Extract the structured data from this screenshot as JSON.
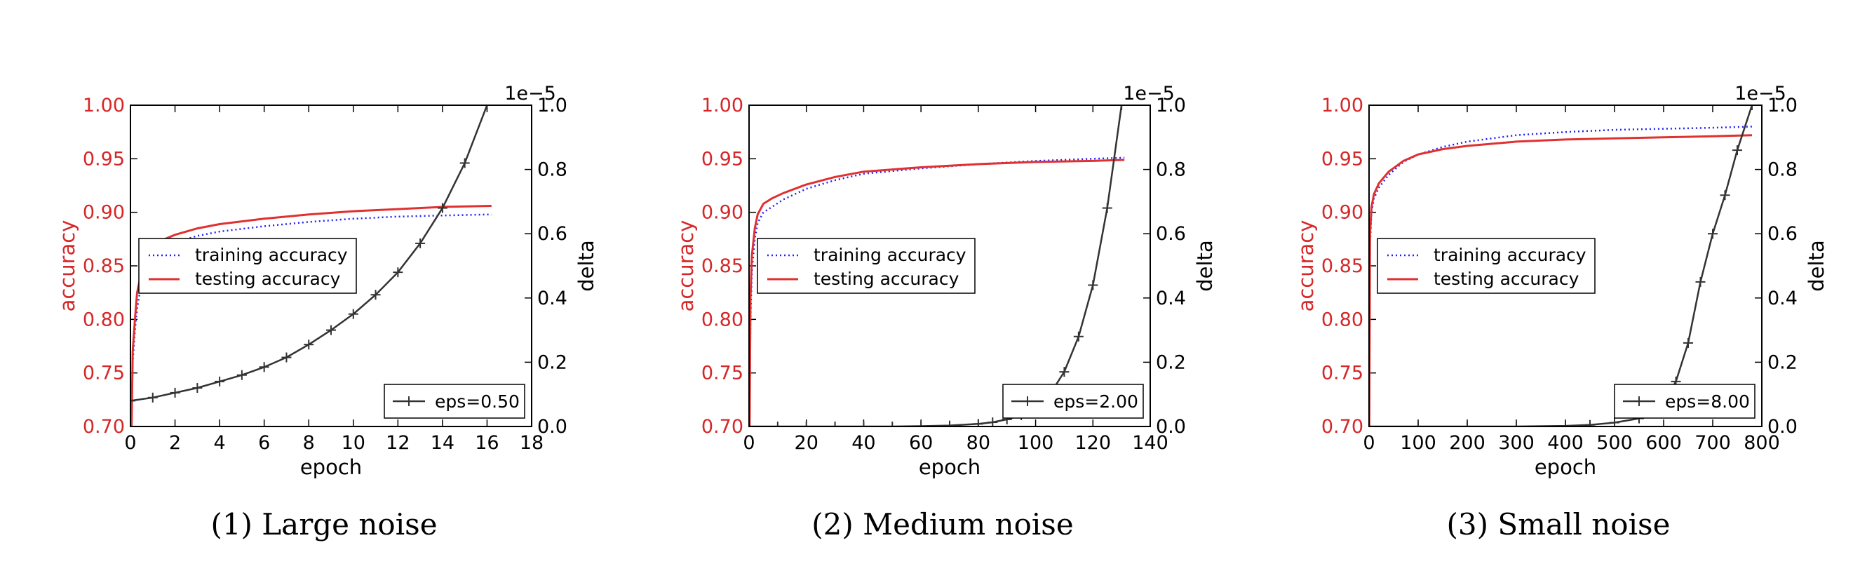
{
  "colors": {
    "accuracy_axis": "#d62728",
    "delta_axis": "#000000",
    "training": "#1f1fff",
    "testing": "#e03030",
    "eps_line": "#333333"
  },
  "chart_data": [
    {
      "type": "line",
      "caption": "(1) Large noise",
      "xlabel": "epoch",
      "ylabel_left": "accuracy",
      "ylabel_right": "delta",
      "right_axis_multiplier": "1e−5",
      "xlim": [
        0,
        18
      ],
      "xticks": [
        "0",
        "2",
        "4",
        "6",
        "8",
        "10",
        "12",
        "14",
        "16",
        "18"
      ],
      "ylim_left": [
        0.7,
        1.0
      ],
      "yticks_left": [
        "0.70",
        "0.75",
        "0.80",
        "0.85",
        "0.90",
        "0.95",
        "1.00"
      ],
      "ylim_right": [
        0.0,
        1.0
      ],
      "yticks_right": [
        "0.0",
        "0.2",
        "0.4",
        "0.6",
        "0.8",
        "1.0"
      ],
      "legend_upper": {
        "location": "center-left",
        "entries": [
          "training accuracy",
          "testing accuracy"
        ]
      },
      "legend_lower": {
        "location": "lower-right",
        "entries": [
          "eps=0.50"
        ]
      },
      "series": [
        {
          "name": "training accuracy",
          "axis": "left",
          "style": "dotted",
          "x": [
            0.05,
            0.1,
            0.2,
            0.3,
            0.5,
            0.8,
            1.2,
            2,
            3,
            4,
            6,
            8,
            10,
            12,
            14,
            16.2
          ],
          "y": [
            0.7,
            0.76,
            0.79,
            0.81,
            0.835,
            0.852,
            0.862,
            0.872,
            0.878,
            0.882,
            0.887,
            0.891,
            0.894,
            0.896,
            0.897,
            0.898
          ]
        },
        {
          "name": "testing accuracy",
          "axis": "left",
          "style": "solid",
          "x": [
            0.05,
            0.1,
            0.2,
            0.3,
            0.5,
            0.8,
            1.2,
            2,
            3,
            4,
            6,
            8,
            10,
            12,
            14,
            16.2
          ],
          "y": [
            0.7,
            0.77,
            0.8,
            0.825,
            0.845,
            0.862,
            0.872,
            0.879,
            0.885,
            0.889,
            0.894,
            0.898,
            0.901,
            0.903,
            0.905,
            0.906
          ]
        },
        {
          "name": "eps=0.50",
          "axis": "right",
          "style": "markers",
          "x": [
            0,
            1,
            2,
            3,
            4,
            5,
            6,
            7,
            8,
            9,
            10,
            11,
            12,
            13,
            14,
            15,
            16
          ],
          "y": [
            0.08,
            0.09,
            0.105,
            0.12,
            0.14,
            0.16,
            0.185,
            0.215,
            0.255,
            0.3,
            0.35,
            0.41,
            0.48,
            0.57,
            0.68,
            0.82,
            1.0
          ]
        }
      ]
    },
    {
      "type": "line",
      "caption": "(2) Medium noise",
      "xlabel": "epoch",
      "ylabel_left": "accuracy",
      "ylabel_right": "delta",
      "right_axis_multiplier": "1e−5",
      "xlim": [
        0,
        140
      ],
      "xticks": [
        "0",
        "20",
        "40",
        "60",
        "80",
        "100",
        "120",
        "140"
      ],
      "ylim_left": [
        0.7,
        1.0
      ],
      "yticks_left": [
        "0.70",
        "0.75",
        "0.80",
        "0.85",
        "0.90",
        "0.95",
        "1.00"
      ],
      "ylim_right": [
        0.0,
        1.0
      ],
      "yticks_right": [
        "0.0",
        "0.2",
        "0.4",
        "0.6",
        "0.8",
        "1.0"
      ],
      "legend_upper": {
        "location": "center-left",
        "entries": [
          "training accuracy",
          "testing accuracy"
        ]
      },
      "legend_lower": {
        "location": "lower-right",
        "entries": [
          "eps=2.00"
        ]
      },
      "series": [
        {
          "name": "training accuracy",
          "axis": "left",
          "style": "dotted",
          "x": [
            0.2,
            0.5,
            1,
            2,
            3,
            5,
            8,
            12,
            20,
            30,
            40,
            60,
            80,
            100,
            120,
            131
          ],
          "y": [
            0.7,
            0.8,
            0.845,
            0.875,
            0.89,
            0.9,
            0.905,
            0.912,
            0.922,
            0.93,
            0.936,
            0.941,
            0.945,
            0.948,
            0.95,
            0.951
          ]
        },
        {
          "name": "testing accuracy",
          "axis": "left",
          "style": "solid",
          "x": [
            0.2,
            0.5,
            1,
            2,
            3,
            5,
            8,
            12,
            20,
            30,
            40,
            60,
            80,
            100,
            120,
            131
          ],
          "y": [
            0.7,
            0.82,
            0.86,
            0.885,
            0.898,
            0.908,
            0.913,
            0.918,
            0.926,
            0.933,
            0.938,
            0.942,
            0.945,
            0.947,
            0.948,
            0.949
          ]
        },
        {
          "name": "eps=2.00",
          "axis": "right",
          "style": "markers",
          "x": [
            0,
            10,
            20,
            30,
            40,
            50,
            60,
            70,
            80,
            85,
            90,
            95,
            100,
            105,
            110,
            115,
            120,
            125,
            130
          ],
          "y": [
            0.0,
            0.0,
            0.0,
            0.0,
            0.0,
            0.0,
            0.001,
            0.003,
            0.008,
            0.013,
            0.022,
            0.035,
            0.06,
            0.1,
            0.17,
            0.28,
            0.44,
            0.68,
            1.0
          ]
        }
      ]
    },
    {
      "type": "line",
      "caption": "(3) Small noise",
      "xlabel": "epoch",
      "ylabel_left": "accuracy",
      "ylabel_right": "delta",
      "right_axis_multiplier": "1e−5",
      "xlim": [
        0,
        800
      ],
      "xticks": [
        "0",
        "100",
        "200",
        "300",
        "400",
        "500",
        "600",
        "700",
        "800"
      ],
      "ylim_left": [
        0.7,
        1.0
      ],
      "yticks_left": [
        "0.70",
        "0.75",
        "0.80",
        "0.85",
        "0.90",
        "0.95",
        "1.00"
      ],
      "ylim_right": [
        0.0,
        1.0
      ],
      "yticks_right": [
        "0.0",
        "0.2",
        "0.4",
        "0.6",
        "0.8",
        "1.0"
      ],
      "legend_upper": {
        "location": "center-left",
        "entries": [
          "training accuracy",
          "testing accuracy"
        ]
      },
      "legend_lower": {
        "location": "lower-right",
        "entries": [
          "eps=8.00"
        ]
      },
      "series": [
        {
          "name": "training accuracy",
          "axis": "left",
          "style": "dotted",
          "x": [
            0.5,
            2,
            5,
            10,
            20,
            40,
            70,
            100,
            150,
            200,
            300,
            400,
            500,
            600,
            700,
            780
          ],
          "y": [
            0.7,
            0.87,
            0.9,
            0.913,
            0.923,
            0.935,
            0.947,
            0.954,
            0.961,
            0.966,
            0.972,
            0.975,
            0.977,
            0.978,
            0.979,
            0.98
          ]
        },
        {
          "name": "testing accuracy",
          "axis": "left",
          "style": "solid",
          "x": [
            0.5,
            2,
            5,
            10,
            20,
            40,
            70,
            100,
            150,
            200,
            300,
            400,
            500,
            600,
            700,
            780
          ],
          "y": [
            0.7,
            0.88,
            0.905,
            0.917,
            0.927,
            0.938,
            0.948,
            0.954,
            0.959,
            0.962,
            0.966,
            0.968,
            0.969,
            0.97,
            0.971,
            0.972
          ]
        },
        {
          "name": "eps=8.00",
          "axis": "right",
          "style": "markers",
          "x": [
            0,
            100,
            200,
            300,
            400,
            450,
            500,
            550,
            600,
            625,
            650,
            675,
            700,
            725,
            750,
            780
          ],
          "y": [
            0.0,
            0.0,
            0.0,
            0.0,
            0.002,
            0.005,
            0.012,
            0.025,
            0.07,
            0.14,
            0.26,
            0.45,
            0.6,
            0.72,
            0.86,
            1.0
          ]
        }
      ]
    }
  ]
}
